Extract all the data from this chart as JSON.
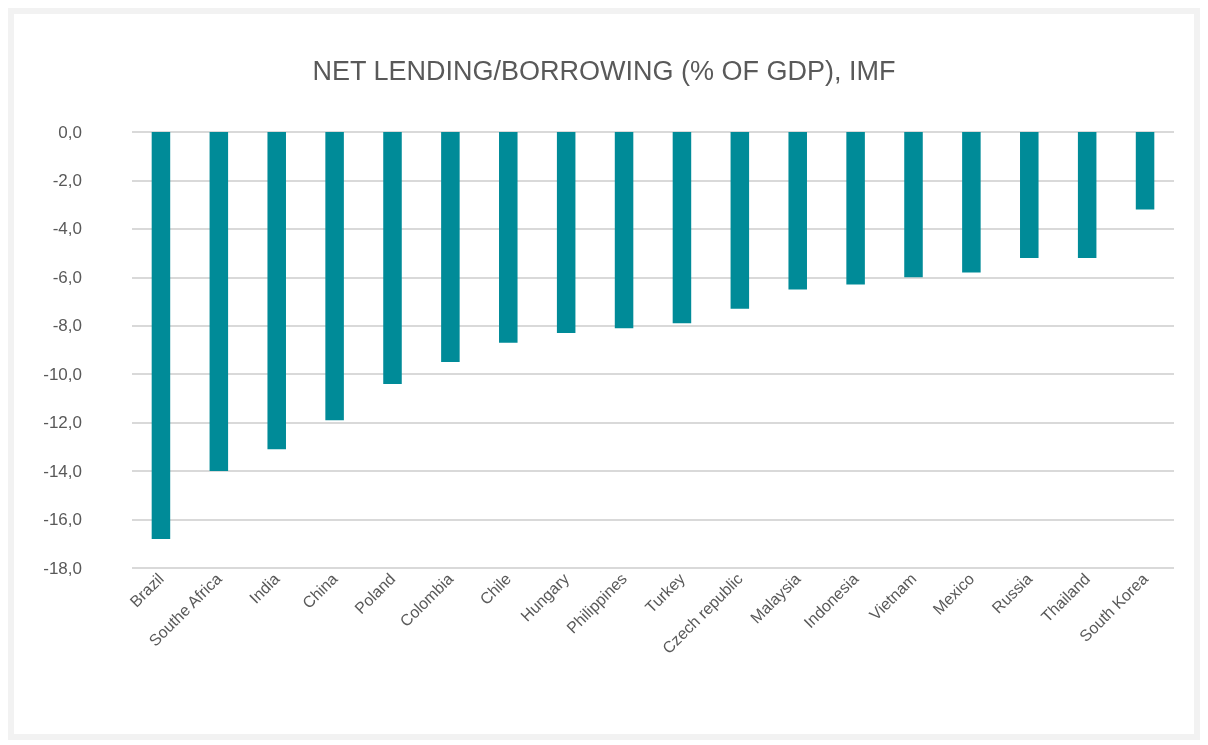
{
  "chart_data": {
    "type": "bar",
    "title": "NET LENDING/BORROWING (% OF GDP), IMF",
    "categories": [
      "Brazil",
      "Southe Africa",
      "India",
      "China",
      "Poland",
      "Colombia",
      "Chile",
      "Hungary",
      "Philippines",
      "Turkey",
      "Czech republic",
      "Malaysia",
      "Indonesia",
      "Vietnam",
      "Mexico",
      "Russia",
      "Thailand",
      "South Korea"
    ],
    "values": [
      -16.8,
      -14.0,
      -13.1,
      -11.9,
      -10.4,
      -9.5,
      -8.7,
      -8.3,
      -8.1,
      -7.9,
      -7.3,
      -6.5,
      -6.3,
      -6.0,
      -5.8,
      -5.2,
      -5.2,
      -3.2
    ],
    "color": "#008b98",
    "ylim": [
      -18,
      0
    ],
    "yticks": [
      {
        "value": 0,
        "label": "0,0"
      },
      {
        "value": -2,
        "label": "-2,0"
      },
      {
        "value": -4,
        "label": "-4,0"
      },
      {
        "value": -6,
        "label": "-6,0"
      },
      {
        "value": -8,
        "label": "-8,0"
      },
      {
        "value": -10,
        "label": "-10,0"
      },
      {
        "value": -12,
        "label": "-12,0"
      },
      {
        "value": -14,
        "label": "-14,0"
      },
      {
        "value": -16,
        "label": "-16,0"
      },
      {
        "value": -18,
        "label": "-18,0"
      }
    ],
    "grid": "y"
  }
}
